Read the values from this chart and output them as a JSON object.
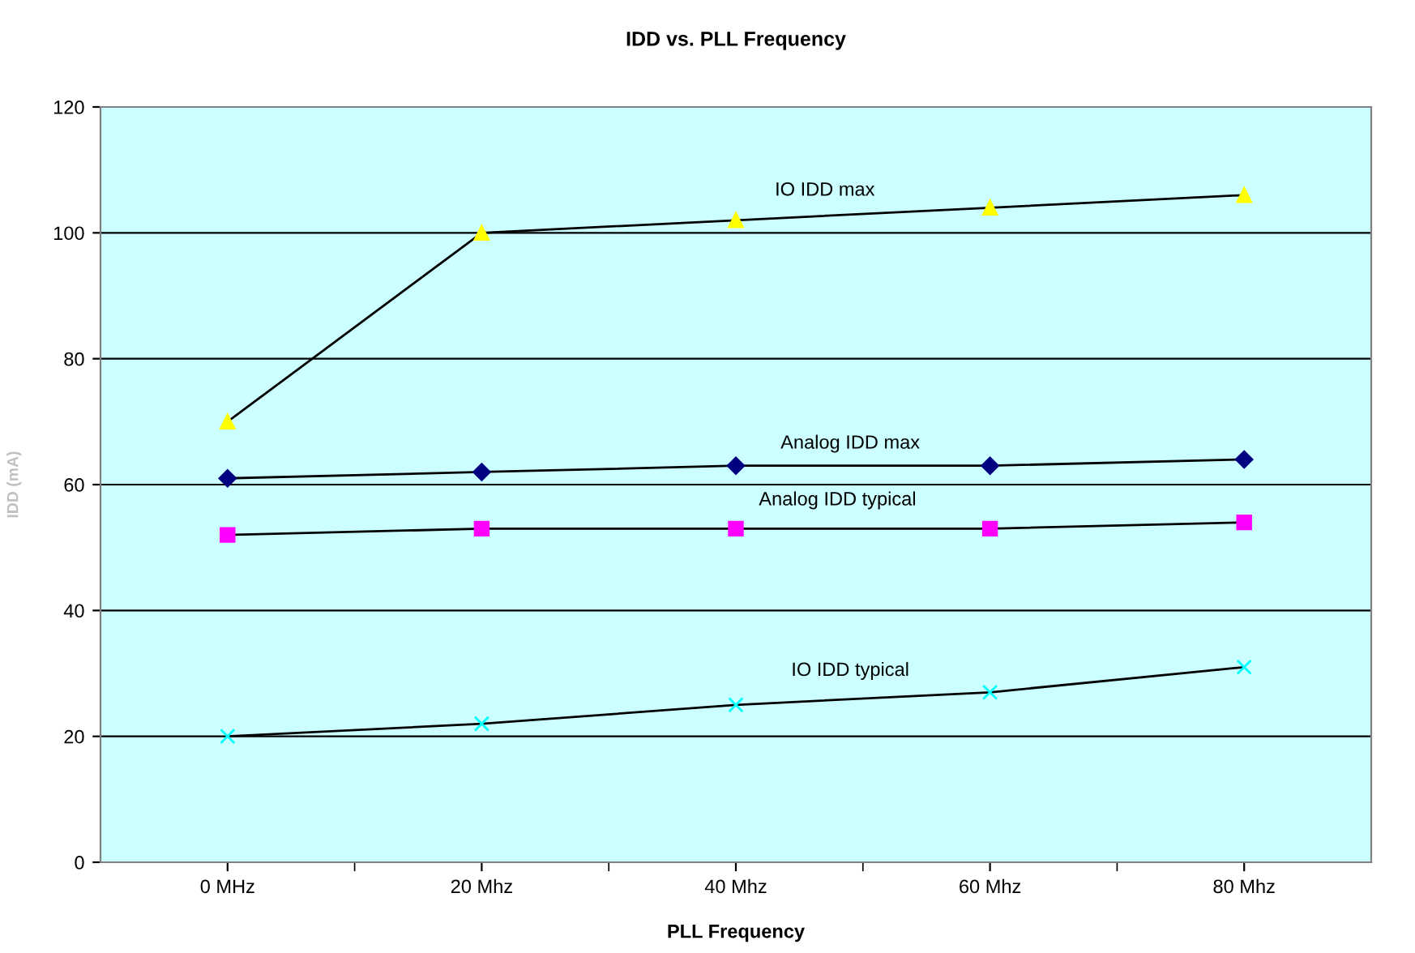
{
  "chart_data": {
    "type": "line",
    "title": "IDD vs. PLL Frequency",
    "xlabel": "PLL Frequency",
    "ylabel": "IDD (mA)",
    "categories": [
      "0 MHz",
      "20 Mhz",
      "40 Mhz",
      "60 Mhz",
      "80 Mhz"
    ],
    "series": [
      {
        "name": "IO IDD max",
        "color": "#ffff00",
        "marker": "triangle",
        "values": [
          70,
          100,
          102,
          104,
          106
        ]
      },
      {
        "name": "Analog IDD max",
        "color": "#000080",
        "marker": "diamond",
        "values": [
          61,
          62,
          63,
          63,
          64
        ]
      },
      {
        "name": "Analog IDD typical",
        "color": "#ff00ff",
        "marker": "square",
        "values": [
          52,
          53,
          53,
          53,
          54
        ]
      },
      {
        "name": "IO IDD typical",
        "color": "#00ffff",
        "marker": "cross",
        "values": [
          20,
          22,
          25,
          27,
          31
        ]
      }
    ],
    "ylim": [
      0,
      120
    ],
    "yticks": [
      0,
      20,
      40,
      60,
      80,
      100,
      120
    ],
    "grid": "y",
    "legend": false,
    "line_style": "solid"
  }
}
